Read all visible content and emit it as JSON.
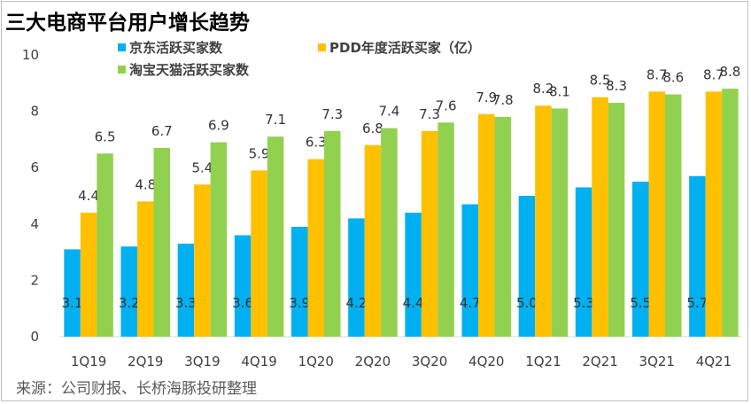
{
  "title": "三大电商平台用户增长趋势",
  "source": "来源：公司财报、长桥海豚投研整理",
  "colors": {
    "jd": "#00b0f0",
    "pdd": "#ffc000",
    "taobao": "#92d050"
  },
  "chart_data": {
    "type": "bar",
    "categories": [
      "1Q19",
      "2Q19",
      "3Q19",
      "4Q19",
      "1Q20",
      "2Q20",
      "3Q20",
      "4Q20",
      "1Q21",
      "2Q21",
      "3Q21",
      "4Q21"
    ],
    "series": [
      {
        "name": "京东活跃买家数",
        "values": [
          3.1,
          3.2,
          3.3,
          3.6,
          3.9,
          4.2,
          4.4,
          4.7,
          5.0,
          5.3,
          5.5,
          5.7
        ]
      },
      {
        "name": "PDD年度活跃买家（亿）",
        "values": [
          4.4,
          4.8,
          5.4,
          5.9,
          6.3,
          6.8,
          7.3,
          7.9,
          8.2,
          8.5,
          8.7,
          8.7
        ]
      },
      {
        "name": "淘宝天猫活跃买家数",
        "values": [
          6.5,
          6.7,
          6.9,
          7.1,
          7.3,
          7.4,
          7.6,
          7.8,
          8.1,
          8.3,
          8.6,
          8.8
        ]
      }
    ],
    "ylim": [
      0,
      10
    ],
    "yticks": [
      0,
      2,
      4,
      6,
      8,
      10
    ],
    "legend": "top-left"
  }
}
